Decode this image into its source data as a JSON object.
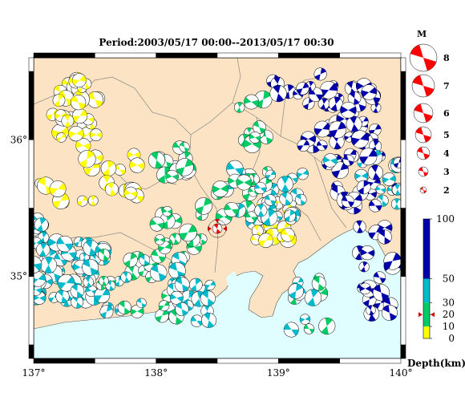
{
  "title": "Period:2003/05/17 00:00--2013/05/17 00:30",
  "map": {
    "x_ticks": [
      {
        "value": 137,
        "label": "137°"
      },
      {
        "value": 138,
        "label": "138°"
      },
      {
        "value": 139,
        "label": "139°"
      },
      {
        "value": 140,
        "label": "140°"
      }
    ],
    "y_ticks": [
      {
        "value": 35,
        "label": "35°"
      },
      {
        "value": 36,
        "label": "36°"
      }
    ],
    "lon_range": [
      137,
      140
    ],
    "lat_range": [
      34.4,
      36.6
    ],
    "colors": {
      "land": "#fbe3c3",
      "sea": "#e0feff",
      "border": "#888888",
      "coast": "#555555"
    }
  },
  "magnitude_legend": {
    "header": "M",
    "items": [
      {
        "label": "8",
        "mag": 8
      },
      {
        "label": "7",
        "mag": 7
      },
      {
        "label": "6",
        "mag": 6
      },
      {
        "label": "5",
        "mag": 5
      },
      {
        "label": "4",
        "mag": 4
      },
      {
        "label": "3",
        "mag": 3
      },
      {
        "label": "2",
        "mag": 2
      }
    ],
    "color": "#ff0000"
  },
  "depth_scale": {
    "title": "Depth(km)",
    "labels": [
      "100",
      "50",
      "30",
      "20",
      "10",
      "0"
    ],
    "ticks": [
      100,
      50,
      30,
      20,
      10,
      0
    ],
    "bands": [
      {
        "from": 0,
        "to": 10,
        "color": "#ffff00"
      },
      {
        "from": 10,
        "to": 30,
        "color": "#00cc66"
      },
      {
        "from": 30,
        "to": 50,
        "color": "#00bbcc"
      },
      {
        "from": 50,
        "to": 100,
        "color": "#0000aa"
      }
    ],
    "marker_depth": 20
  },
  "target_event": {
    "lon": 138.5,
    "lat": 35.35,
    "depth": 20,
    "mag": 3
  }
}
